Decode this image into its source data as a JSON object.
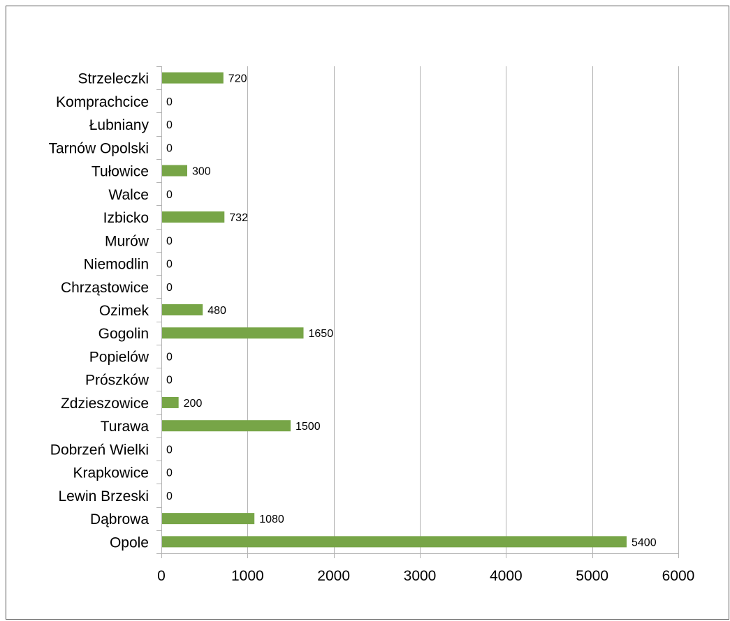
{
  "chart_data": {
    "type": "bar",
    "orientation": "horizontal",
    "title": "",
    "xlabel": "",
    "ylabel": "",
    "categories": [
      "Strzeleczki",
      "Komprachcice",
      "Łubniany",
      "Tarnów Opolski",
      "Tułowice",
      "Walce",
      "Izbicko",
      "Murów",
      "Niemodlin",
      "Chrząstowice",
      "Ozimek",
      "Gogolin",
      "Popielów",
      "Prószków",
      "Zdzieszowice",
      "Turawa",
      "Dobrzeń Wielki",
      "Krapkowice",
      "Lewin Brzeski",
      "Dąbrowa",
      "Opole"
    ],
    "values": [
      720,
      0,
      0,
      0,
      300,
      0,
      732,
      0,
      0,
      0,
      480,
      1650,
      0,
      0,
      200,
      1500,
      0,
      0,
      0,
      1080,
      5400
    ],
    "data_labels": [
      "720",
      "0",
      "0",
      "0",
      "300",
      "0",
      "732",
      "0",
      "0",
      "0",
      "480",
      "1650",
      "0",
      "0",
      "200",
      "1500",
      "0",
      "0",
      "0",
      "1080",
      "5400"
    ],
    "xlim": [
      0,
      6000
    ],
    "xticks": [
      0,
      1000,
      2000,
      3000,
      4000,
      5000,
      6000
    ],
    "xtick_labels": [
      "0",
      "1000",
      "2000",
      "3000",
      "4000",
      "5000",
      "6000"
    ],
    "grid": "vertical",
    "legend": "none",
    "colors": {
      "bar": "#77a547",
      "grid": "#b3b3b3",
      "axis": "#b3b3b3",
      "border": "#555555",
      "text": "#000000"
    }
  }
}
